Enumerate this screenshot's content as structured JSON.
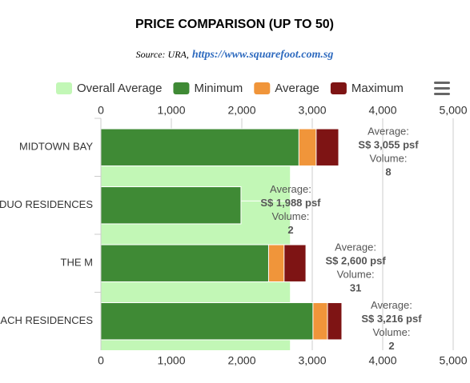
{
  "chart_data": {
    "type": "bar",
    "title": "PRICE COMPARISON (UP TO 50)",
    "subtitle": "Source: URA,",
    "subtitle_link": "https://www.squarefoot.com.sg",
    "categories": [
      "MIDTOWN BAY",
      "DUO RESIDENCES",
      "THE M",
      "SOUTH BEACH RESIDENCES"
    ],
    "series": [
      {
        "name": "Overall Average",
        "color": "#c2f7b6",
        "values": [
          2690,
          2690,
          2690,
          2690
        ]
      },
      {
        "name": "Minimum",
        "color": "#3f8a35",
        "values": [
          2810,
          1988,
          2380,
          3010
        ]
      },
      {
        "name": "Average",
        "color": "#f0953a",
        "values": [
          3055,
          1988,
          2600,
          3216
        ],
        "value_labels": [
          "S$ 3,055 psf",
          "S$ 1,988 psf",
          "S$ 2,600 psf",
          "S$ 3,216 psf"
        ]
      },
      {
        "name": "Maximum",
        "color": "#7e1414",
        "values": [
          3375,
          1988,
          2910,
          3420
        ]
      }
    ],
    "average_label": "Average:",
    "volume_label": "Volume:",
    "volumes": [
      8,
      2,
      31,
      2
    ],
    "xlim": [
      0,
      5000
    ],
    "xticks": [
      0,
      {
        "value": 1000,
        "label": "1,000"
      },
      {
        "value": 2000,
        "label": "2,000"
      },
      {
        "value": 3000,
        "label": "3,000"
      },
      {
        "value": 4000,
        "label": "4,000"
      },
      {
        "value": 5000,
        "label": "5,000"
      }
    ],
    "grid": true
  }
}
